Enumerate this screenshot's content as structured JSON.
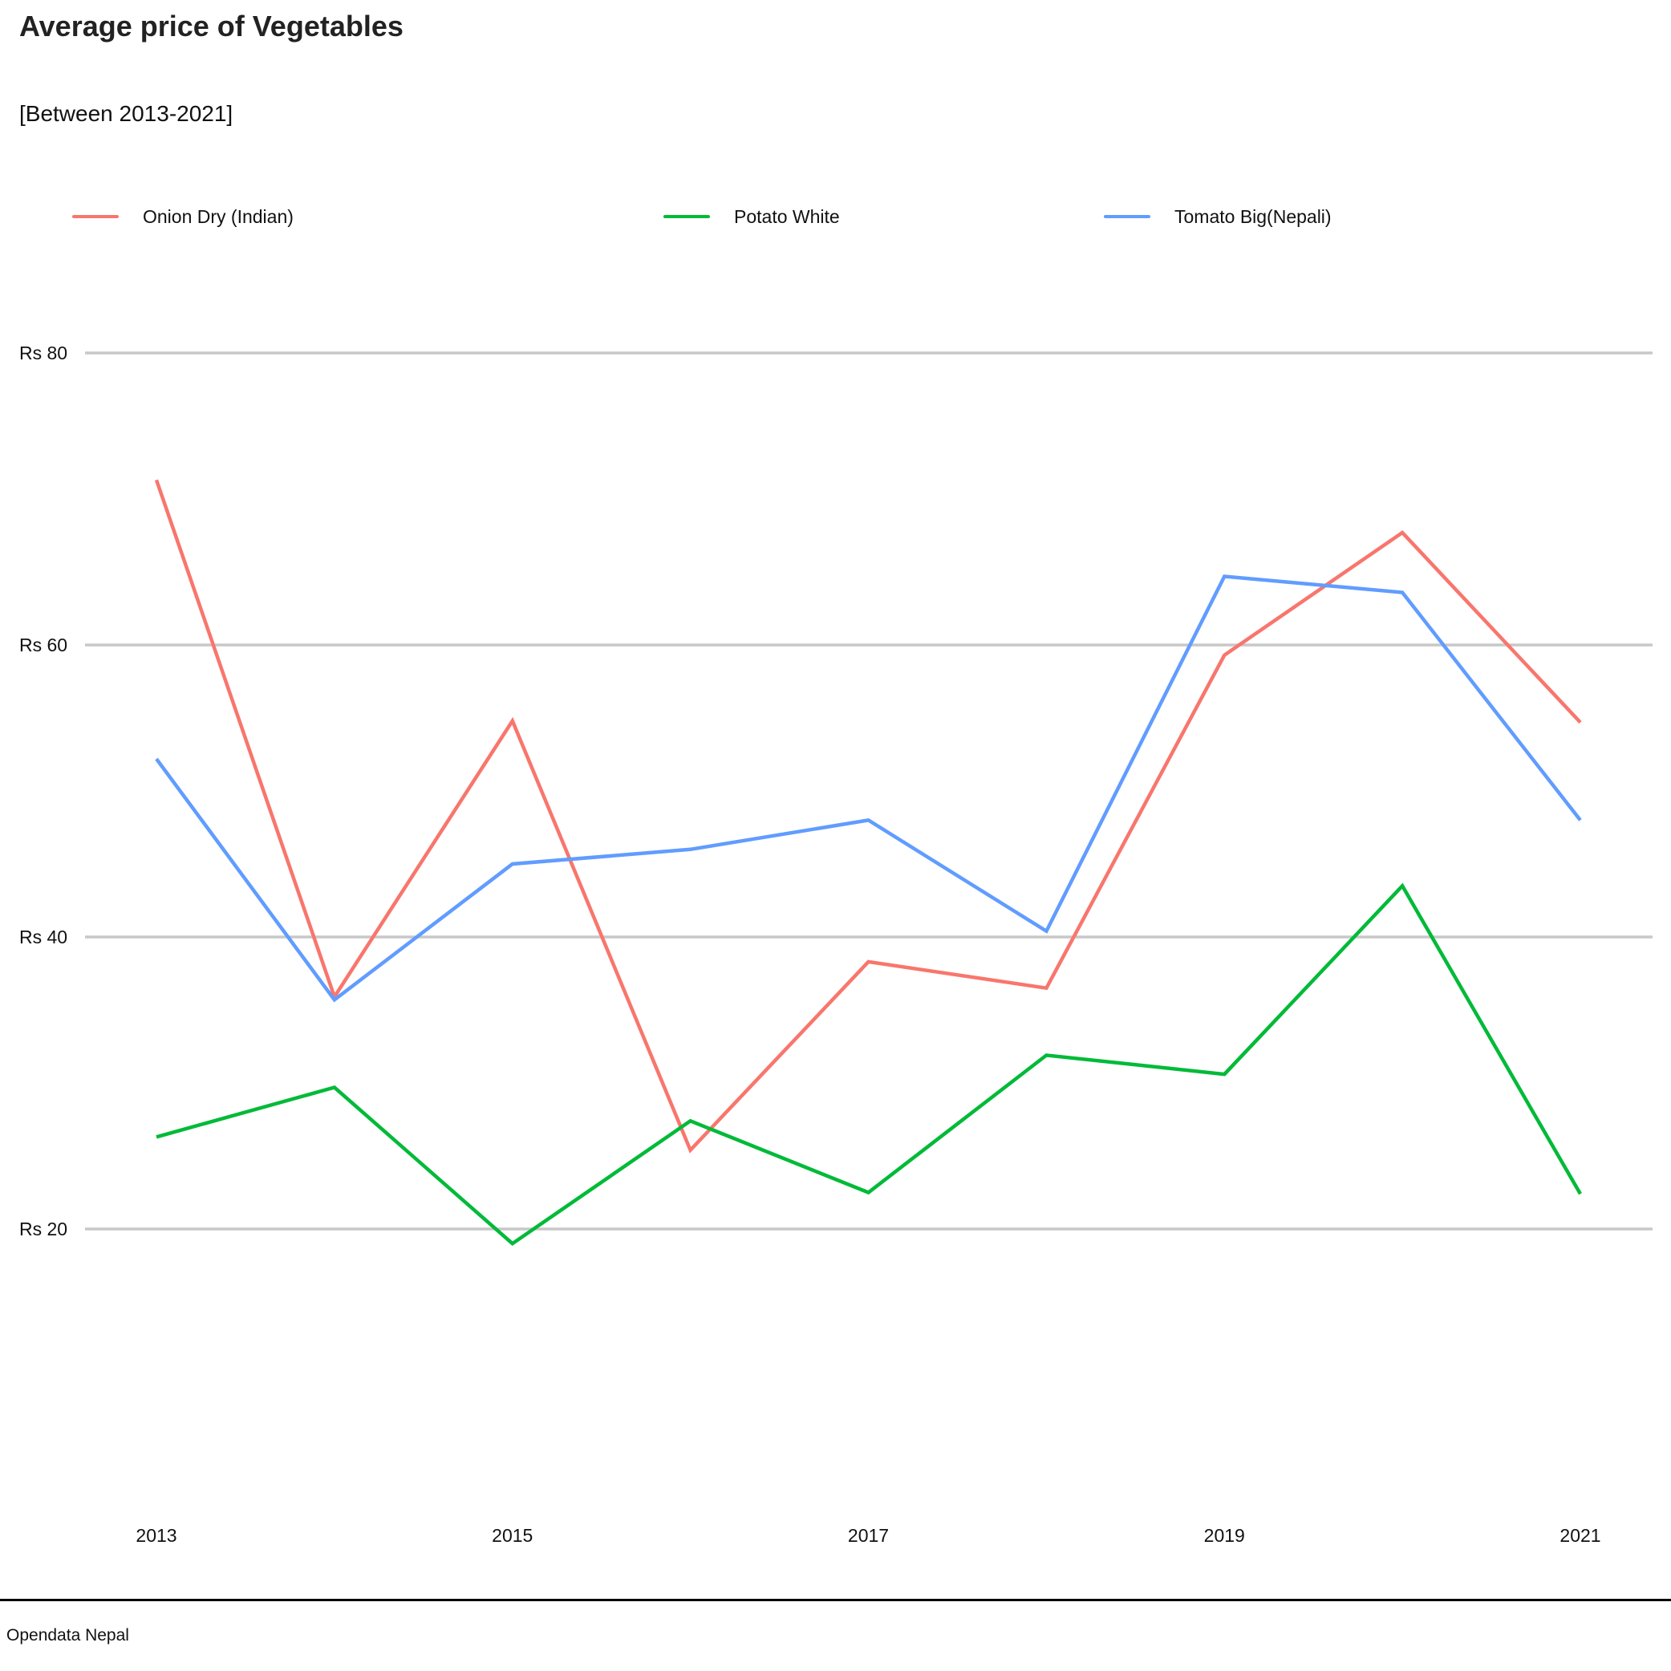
{
  "chart_data": {
    "type": "line",
    "title": "Average price of Vegetables",
    "subtitle": "[Between 2013-2021]",
    "caption": "Opendata Nepal",
    "x": [
      2013,
      2014,
      2015,
      2016,
      2017,
      2018,
      2019,
      2020,
      2021
    ],
    "x_tick_labels": [
      "2013",
      "2015",
      "2017",
      "2019",
      "2021"
    ],
    "x_tick_values": [
      2013,
      2015,
      2017,
      2019,
      2021
    ],
    "y_tick_labels": [
      "Rs 20",
      "Rs 40",
      "Rs 60",
      "Rs 80"
    ],
    "y_tick_values": [
      20,
      40,
      60,
      80
    ],
    "ylim": [
      7,
      90
    ],
    "xlim": [
      2012.6,
      2021.4
    ],
    "grid": "horizontal-major",
    "legend_position": "top",
    "series": [
      {
        "name": "Onion Dry (Indian)",
        "color": "#F8766D",
        "values": [
          71.3,
          35.9,
          54.8,
          25.4,
          38.3,
          36.5,
          59.3,
          67.7,
          54.7
        ]
      },
      {
        "name": "Potato White",
        "color": "#00BA38",
        "values": [
          26.3,
          29.7,
          19.0,
          27.4,
          22.5,
          31.9,
          30.6,
          43.5,
          22.4
        ]
      },
      {
        "name": "Tomato Big(Nepali)",
        "color": "#619CFF",
        "values": [
          52.2,
          35.7,
          45.0,
          46.0,
          48.0,
          40.4,
          64.7,
          63.6,
          48.0
        ]
      }
    ]
  }
}
